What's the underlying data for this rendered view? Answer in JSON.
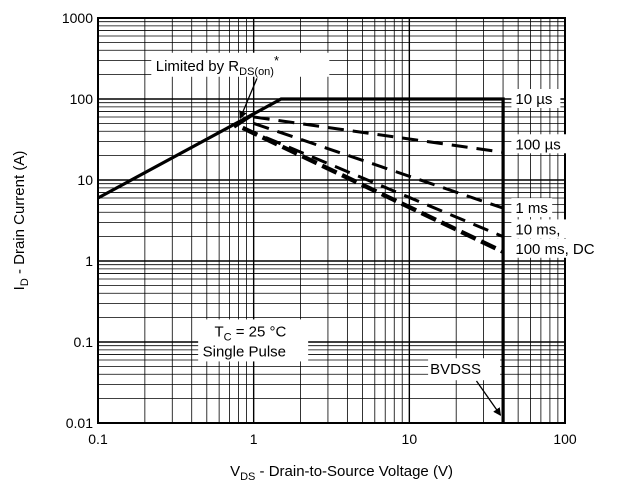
{
  "chart_data": {
    "type": "line",
    "xlabel": {
      "main": "V",
      "sub": "DS",
      "rest": " - Drain-to-Source Voltage (V)"
    },
    "ylabel": {
      "main": "I",
      "sub": "D",
      "rest": " - Drain Current (A)"
    },
    "xscale": "log",
    "yscale": "log",
    "xlim": [
      0.1,
      100
    ],
    "ylim": [
      0.01,
      1000
    ],
    "grid": true,
    "x_ticks": [
      "0.1",
      "1",
      "10",
      "100"
    ],
    "y_ticks": [
      "0.01",
      "0.1",
      "1",
      "10",
      "100",
      "1000"
    ],
    "series": [
      {
        "name": "10 µs",
        "style": "solid",
        "points": [
          [
            0.1,
            6
          ],
          [
            1.5,
            100
          ],
          [
            40,
            100
          ],
          [
            40,
            0.01
          ]
        ]
      },
      {
        "name": "100 µs",
        "style": "dashed",
        "points": [
          [
            1.0,
            60
          ],
          [
            40,
            22
          ]
        ]
      },
      {
        "name": "1 ms",
        "style": "dashed",
        "points": [
          [
            1.0,
            50
          ],
          [
            40,
            4.5
          ]
        ]
      },
      {
        "name": "10 ms,",
        "style": "dashed",
        "points": [
          [
            0.85,
            44
          ],
          [
            40,
            2.0
          ]
        ]
      },
      {
        "name": "100 ms, DC",
        "style": "dashed-bold",
        "points": [
          [
            0.85,
            44
          ],
          [
            40,
            1.3
          ]
        ]
      }
    ],
    "rdson_limit": {
      "points": [
        [
          0.75,
          45
        ],
        [
          1.0,
          65
        ]
      ]
    },
    "annotations": {
      "rdson": {
        "prefix": "Limited by R",
        "sub": "DS(on)",
        "suffix": "*"
      },
      "conditions": {
        "line1_main": "T",
        "line1_sub": "C",
        "line1_rest": " = 25 °C",
        "line2": "Single Pulse"
      },
      "bvdss": "BVDSS"
    }
  }
}
